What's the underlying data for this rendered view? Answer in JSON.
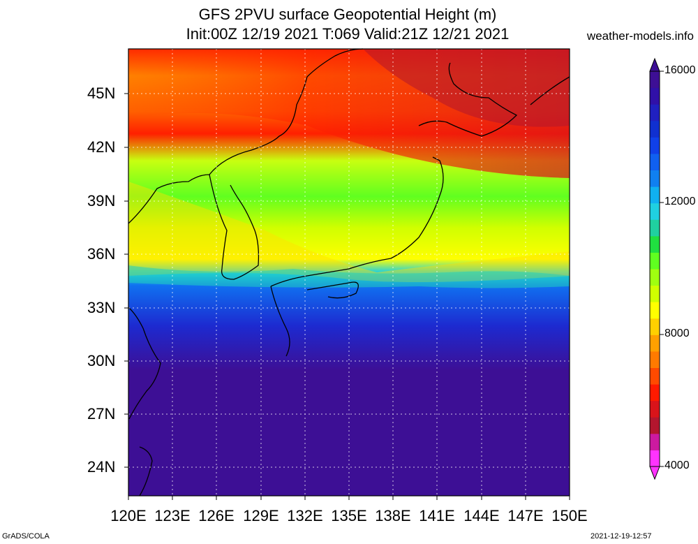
{
  "header": {
    "title_line1": "GFS 2PVU surface Geopotential Height (m)",
    "title_line2": "Init:00Z 12/19 2021 T:069 Valid:21Z 12/21 2021",
    "site": "weather-models.info"
  },
  "map": {
    "lat_labels": [
      "45N",
      "42N",
      "39N",
      "36N",
      "33N",
      "30N",
      "27N",
      "24N"
    ],
    "lon_labels": [
      "120E",
      "123E",
      "126E",
      "129E",
      "132E",
      "135E",
      "138E",
      "141E",
      "144E",
      "147E",
      "150E"
    ]
  },
  "colorbar": {
    "labels": [
      "16000",
      "12000",
      "8000",
      "4000"
    ],
    "colors": [
      "#ff33ff",
      "#cc1aa0",
      "#b3162e",
      "#d9141a",
      "#ff1a00",
      "#ff4a00",
      "#ff7a00",
      "#ffa000",
      "#ffd000",
      "#ffff00",
      "#d0ff00",
      "#a0ff10",
      "#60ff20",
      "#20e040",
      "#20d0a0",
      "#20d0e0",
      "#10b0f0",
      "#1080f0",
      "#1060f0",
      "#1040e8",
      "#1030d0",
      "#2020c0",
      "#3010a8",
      "#3d0f95"
    ]
  },
  "footer": {
    "left": "GrADS/COLA",
    "right": "2021-12-19-12:57"
  }
}
